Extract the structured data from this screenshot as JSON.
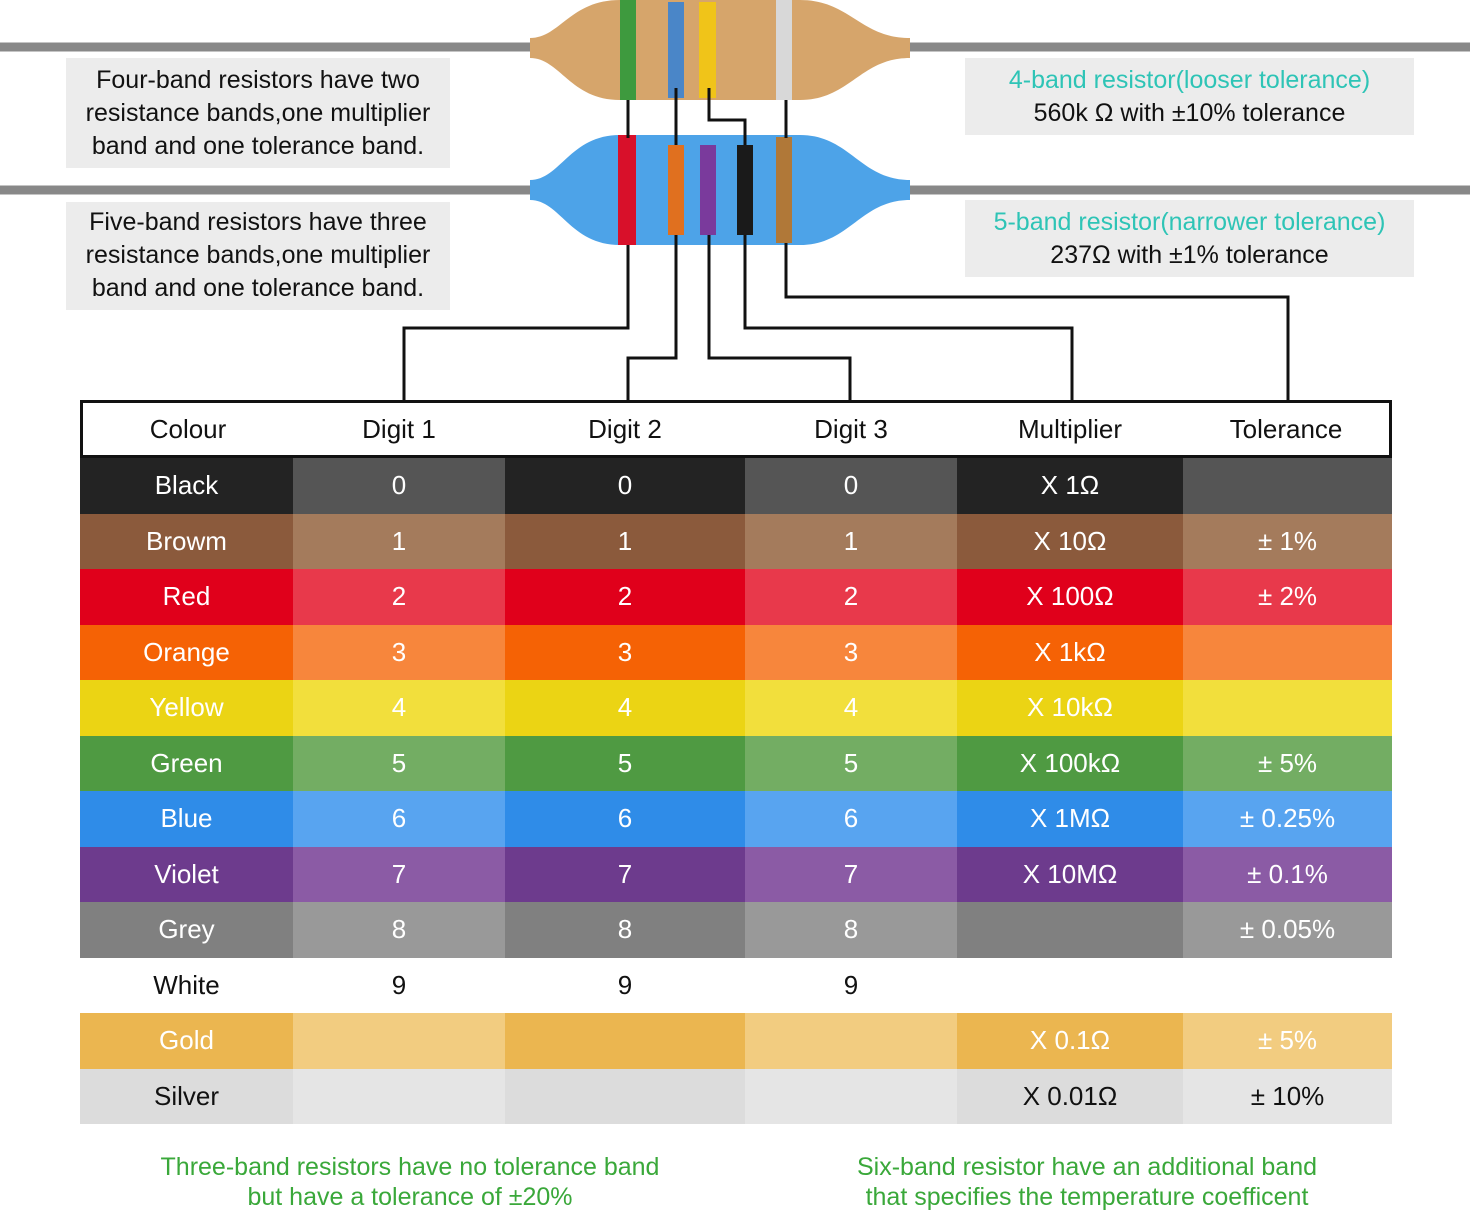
{
  "notes": [
    {
      "lines": [
        "Four-band resistors have two",
        "resistance bands,one multiplier",
        "band and one tolerance band."
      ]
    },
    {
      "lines": [
        "Five-band resistors have three",
        "resistance bands,one multiplier",
        "band and one tolerance band."
      ]
    }
  ],
  "callouts": [
    {
      "title": "4-band resistor(looser tolerance)",
      "value": "560k Ω with ±10% tolerance"
    },
    {
      "title": "5-band resistor(narrower tolerance)",
      "value": "237Ω with ±1% tolerance"
    }
  ],
  "table": {
    "header": [
      "Colour",
      "Digit 1",
      "Digit 2",
      "Digit 3",
      "Multiplier",
      "Tolerance"
    ],
    "rows": [
      [
        "Black",
        "0",
        "0",
        "0",
        "X 1Ω",
        null
      ],
      [
        "Browm",
        "1",
        "1",
        "1",
        "X 10Ω",
        "± 1%"
      ],
      [
        "Red",
        "2",
        "2",
        "2",
        "X 100Ω",
        "± 2%"
      ],
      [
        "Orange",
        "3",
        "3",
        "3",
        "X 1kΩ",
        null
      ],
      [
        "Yellow",
        "4",
        "4",
        "4",
        "X 10kΩ",
        null
      ],
      [
        "Green",
        "5",
        "5",
        "5",
        "X 100kΩ",
        "± 5%"
      ],
      [
        "Blue",
        "6",
        "6",
        "6",
        "X 1MΩ",
        "± 0.25%"
      ],
      [
        "Violet",
        "7",
        "7",
        "7",
        "X 10MΩ",
        "± 0.1%"
      ],
      [
        "Grey",
        "8",
        "8",
        "8",
        null,
        "± 0.05%"
      ],
      [
        "White",
        "9",
        "9",
        "9",
        null,
        null
      ],
      [
        "Gold",
        null,
        null,
        null,
        "X 0.1Ω",
        "± 5%"
      ],
      [
        "Silver",
        null,
        null,
        null,
        "X 0.01Ω",
        "± 10%"
      ]
    ]
  },
  "footer": [
    {
      "lines": [
        "Three-band resistors have no tolerance band",
        "but have a tolerance of ±20%"
      ]
    },
    {
      "lines": [
        "Six-band resistor have an additional band",
        "that specifies the temperature coefficent"
      ]
    }
  ]
}
